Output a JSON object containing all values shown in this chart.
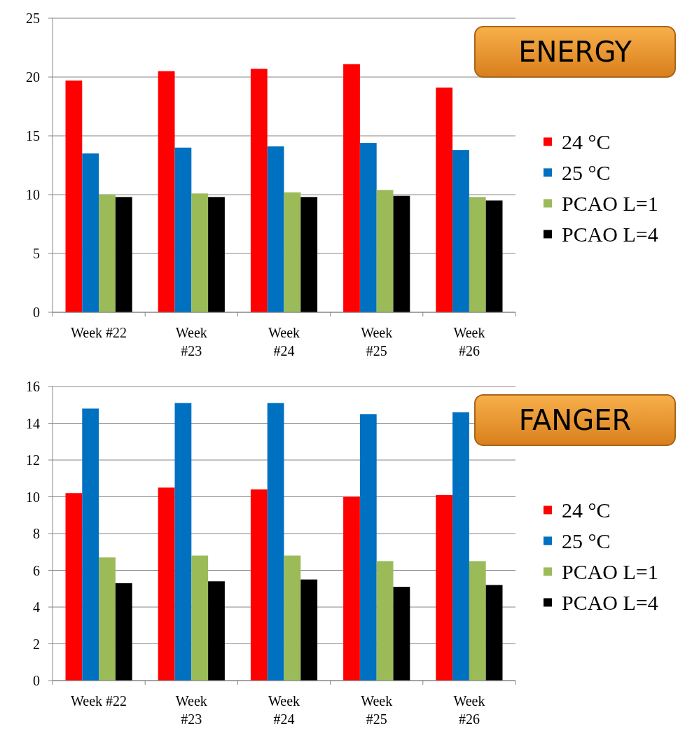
{
  "chart_data": [
    {
      "type": "bar",
      "title": "ENERGY",
      "categories": [
        "Week #22",
        "Week #23",
        "Week #24",
        "Week #25",
        "Week #26"
      ],
      "series": [
        {
          "name": "24 °C",
          "color": "#ff0000",
          "values": [
            19.7,
            20.5,
            20.7,
            21.1,
            19.1
          ]
        },
        {
          "name": "25 °C",
          "color": "#0070c0",
          "values": [
            13.5,
            14.0,
            14.1,
            14.4,
            13.8
          ]
        },
        {
          "name": "PCAO L=1",
          "color": "#9bbb59",
          "values": [
            10.0,
            10.1,
            10.2,
            10.4,
            9.8
          ]
        },
        {
          "name": "PCAO L=4",
          "color": "#000000",
          "values": [
            9.8,
            9.8,
            9.8,
            9.9,
            9.5
          ]
        }
      ],
      "ylim": [
        0,
        25
      ],
      "yticks": [
        0,
        5,
        10,
        15,
        20,
        25
      ],
      "grid": "y",
      "legend": "right"
    },
    {
      "type": "bar",
      "title": "FANGER",
      "categories": [
        "Week #22",
        "Week #23",
        "Week #24",
        "Week #25",
        "Week #26"
      ],
      "series": [
        {
          "name": "24 °C",
          "color": "#ff0000",
          "values": [
            10.2,
            10.5,
            10.4,
            10.0,
            10.1
          ]
        },
        {
          "name": "25 °C",
          "color": "#0070c0",
          "values": [
            14.8,
            15.1,
            15.1,
            14.5,
            14.6
          ]
        },
        {
          "name": "PCAO L=1",
          "color": "#9bbb59",
          "values": [
            6.7,
            6.8,
            6.8,
            6.5,
            6.5
          ]
        },
        {
          "name": "PCAO L=4",
          "color": "#000000",
          "values": [
            5.3,
            5.4,
            5.5,
            5.1,
            5.2
          ]
        }
      ],
      "ylim": [
        0,
        16
      ],
      "yticks": [
        0,
        2,
        4,
        6,
        8,
        10,
        12,
        14,
        16
      ],
      "grid": "y",
      "legend": "right"
    }
  ]
}
